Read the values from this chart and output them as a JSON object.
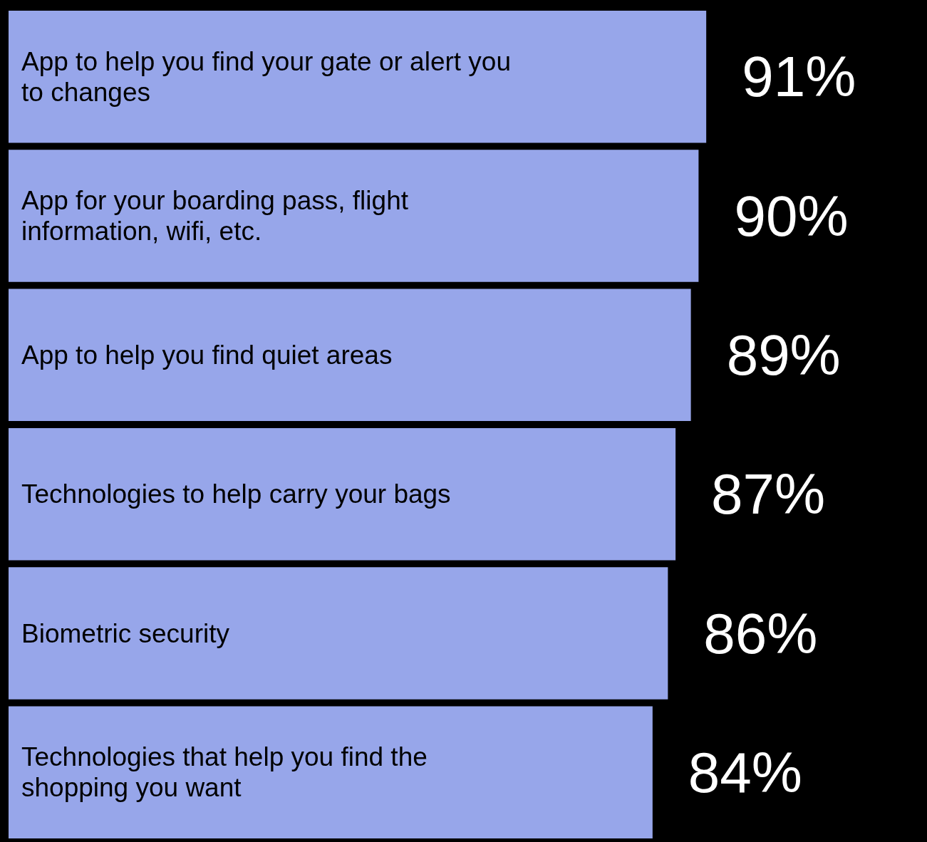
{
  "chart_data": {
    "type": "bar",
    "orientation": "horizontal",
    "categories": [
      "App to help you find your gate or alert you to changes",
      "App for your boarding pass, flight information, wifi, etc.",
      "App to help you find quiet areas",
      "Technologies to help carry your bags",
      "Biometric security",
      "Technologies that help you find the shopping you want"
    ],
    "values": [
      91,
      90,
      89,
      87,
      86,
      84
    ],
    "value_labels": [
      "91%",
      "90%",
      "89%",
      "87%",
      "86%",
      "84%"
    ],
    "color": "#97a6ea",
    "tick_labels": "y"
  }
}
